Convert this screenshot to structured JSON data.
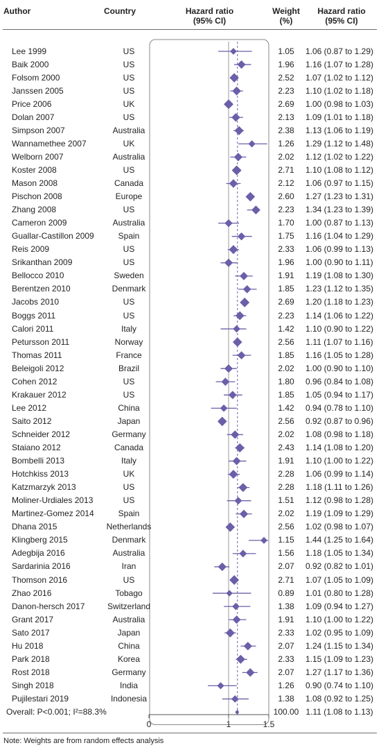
{
  "headers": {
    "author": "Author",
    "country": "Country",
    "hr_line1": "Hazard ratio",
    "hr_line2": "(95% CI)",
    "weight_line1": "Weight",
    "weight_line2": "(%)",
    "hrci_line1": "Hazard ratio",
    "hrci_line2": "(95% CI)"
  },
  "colors": {
    "marker": "#6a5fa8",
    "axis": "#555555",
    "refline": "#999999",
    "box": "#888888"
  },
  "chart_data": {
    "type": "forest",
    "xlim": [
      0,
      1.5
    ],
    "ticks": [
      "0",
      "1",
      "1.5"
    ],
    "reference_line": 1,
    "studies": [
      {
        "author": "Lee 1999",
        "country": "US",
        "weight": "1.05",
        "hr_text": "1.06 (0.87 to 1.29)",
        "hr": 1.06,
        "lo": 0.87,
        "hi": 1.29
      },
      {
        "author": "Baik 2000",
        "country": "US",
        "weight": "1.96",
        "hr_text": "1.16 (1.07 to 1.28)",
        "hr": 1.16,
        "lo": 1.07,
        "hi": 1.28
      },
      {
        "author": "Folsom 2000",
        "country": "US",
        "weight": "2.52",
        "hr_text": "1.07 (1.02 to 1.12)",
        "hr": 1.07,
        "lo": 1.02,
        "hi": 1.12
      },
      {
        "author": "Janssen 2005",
        "country": "US",
        "weight": "2.23",
        "hr_text": "1.10 (1.02 to 1.18)",
        "hr": 1.1,
        "lo": 1.02,
        "hi": 1.18
      },
      {
        "author": "Price 2006",
        "country": "UK",
        "weight": "2.69",
        "hr_text": "1.00 (0.98 to 1.03)",
        "hr": 1.0,
        "lo": 0.98,
        "hi": 1.03
      },
      {
        "author": "Dolan 2007",
        "country": "US",
        "weight": "2.13",
        "hr_text": "1.09 (1.01 to 1.18)",
        "hr": 1.09,
        "lo": 1.01,
        "hi": 1.18
      },
      {
        "author": "Simpson 2007",
        "country": "Australia",
        "weight": "2.38",
        "hr_text": "1.13 (1.06 to 1.19)",
        "hr": 1.13,
        "lo": 1.06,
        "hi": 1.19
      },
      {
        "author": "Wannamethee 2007",
        "country": "UK",
        "weight": "1.26",
        "hr_text": "1.29 (1.12 to 1.48)",
        "hr": 1.29,
        "lo": 1.12,
        "hi": 1.48
      },
      {
        "author": "Welborn 2007",
        "country": "Australia",
        "weight": "2.02",
        "hr_text": "1.12 (1.02 to 1.22)",
        "hr": 1.12,
        "lo": 1.02,
        "hi": 1.22
      },
      {
        "author": "Koster 2008",
        "country": "US",
        "weight": "2.71",
        "hr_text": "1.10 (1.08 to 1.12)",
        "hr": 1.1,
        "lo": 1.08,
        "hi": 1.12
      },
      {
        "author": "Mason 2008",
        "country": "Canada",
        "weight": "2.12",
        "hr_text": "1.06 (0.97 to 1.15)",
        "hr": 1.06,
        "lo": 0.97,
        "hi": 1.15
      },
      {
        "author": "Pischon 2008",
        "country": "Europe",
        "weight": "2.60",
        "hr_text": "1.27 (1.23 to 1.31)",
        "hr": 1.27,
        "lo": 1.23,
        "hi": 1.31
      },
      {
        "author": "Zhang 2008",
        "country": "US",
        "weight": "2.23",
        "hr_text": "1.34 (1.23 to 1.39)",
        "hr": 1.34,
        "lo": 1.23,
        "hi": 1.39
      },
      {
        "author": "Cameron 2009",
        "country": "Australia",
        "weight": "1.70",
        "hr_text": "1.00 (0.87 to 1.13)",
        "hr": 1.0,
        "lo": 0.87,
        "hi": 1.13
      },
      {
        "author": "Guallar-Castillon 2009",
        "country": "Spain",
        "weight": "1.75",
        "hr_text": "1.16 (1.04 to 1.29)",
        "hr": 1.16,
        "lo": 1.04,
        "hi": 1.29
      },
      {
        "author": "Reis 2009",
        "country": "US",
        "weight": "2.33",
        "hr_text": "1.06 (0.99 to 1.13)",
        "hr": 1.06,
        "lo": 0.99,
        "hi": 1.13
      },
      {
        "author": "Srikanthan 2009",
        "country": "US",
        "weight": "1.96",
        "hr_text": "1.00 (0.90 to 1.11)",
        "hr": 1.0,
        "lo": 0.9,
        "hi": 1.11
      },
      {
        "author": "Bellocco 2010",
        "country": "Sweden",
        "weight": "1.91",
        "hr_text": "1.19 (1.08 to 1.30)",
        "hr": 1.19,
        "lo": 1.08,
        "hi": 1.3
      },
      {
        "author": "Berentzen 2010",
        "country": "Denmark",
        "weight": "1.85",
        "hr_text": "1.23 (1.12 to 1.35)",
        "hr": 1.23,
        "lo": 1.12,
        "hi": 1.35
      },
      {
        "author": "Jacobs 2010",
        "country": "US",
        "weight": "2.69",
        "hr_text": "1.20 (1.18 to 1.23)",
        "hr": 1.2,
        "lo": 1.18,
        "hi": 1.23
      },
      {
        "author": "Boggs 2011",
        "country": "US",
        "weight": "2.23",
        "hr_text": "1.14 (1.06 to 1.22)",
        "hr": 1.14,
        "lo": 1.06,
        "hi": 1.22
      },
      {
        "author": "Calori 2011",
        "country": "Italy",
        "weight": "1.42",
        "hr_text": "1.10 (0.90 to 1.22)",
        "hr": 1.1,
        "lo": 0.9,
        "hi": 1.22
      },
      {
        "author": "Petursson 2011",
        "country": "Norway",
        "weight": "2.56",
        "hr_text": "1.11 (1.07 to 1.16)",
        "hr": 1.11,
        "lo": 1.07,
        "hi": 1.16
      },
      {
        "author": "Thomas 2011",
        "country": "France",
        "weight": "1.85",
        "hr_text": "1.16 (1.05 to 1.28)",
        "hr": 1.16,
        "lo": 1.05,
        "hi": 1.28
      },
      {
        "author": "Beleigoli 2012",
        "country": "Brazil",
        "weight": "2.02",
        "hr_text": "1.00 (0.90 to 1.10)",
        "hr": 1.0,
        "lo": 0.9,
        "hi": 1.1
      },
      {
        "author": "Cohen 2012",
        "country": "US",
        "weight": "1.80",
        "hr_text": "0.96 (0.84 to 1.08)",
        "hr": 0.96,
        "lo": 0.84,
        "hi": 1.08
      },
      {
        "author": "Krakauer 2012",
        "country": "US",
        "weight": "1.85",
        "hr_text": "1.05 (0.94 to 1.17)",
        "hr": 1.05,
        "lo": 0.94,
        "hi": 1.17
      },
      {
        "author": "Lee 2012",
        "country": "China",
        "weight": "1.42",
        "hr_text": "0.94 (0.78 to 1.10)",
        "hr": 0.94,
        "lo": 0.78,
        "hi": 1.1
      },
      {
        "author": "Saito 2012",
        "country": "Japan",
        "weight": "2.56",
        "hr_text": "0.92 (0.87 to 0.96)",
        "hr": 0.92,
        "lo": 0.87,
        "hi": 0.96
      },
      {
        "author": "Schneider 2012",
        "country": "Germany",
        "weight": "2.02",
        "hr_text": "1.08 (0.98 to 1.18)",
        "hr": 1.08,
        "lo": 0.98,
        "hi": 1.18
      },
      {
        "author": "Staiano 2012",
        "country": "Canada",
        "weight": "2.43",
        "hr_text": "1.14 (1.08 to 1.20)",
        "hr": 1.14,
        "lo": 1.08,
        "hi": 1.2
      },
      {
        "author": "Bombelli 2013",
        "country": "Italy",
        "weight": "1.91",
        "hr_text": "1.10 (1.00 to 1.22)",
        "hr": 1.1,
        "lo": 1.0,
        "hi": 1.22
      },
      {
        "author": "Hotchkiss 2013",
        "country": "UK",
        "weight": "2.28",
        "hr_text": "1.06 (0.99 to 1.14)",
        "hr": 1.06,
        "lo": 0.99,
        "hi": 1.14
      },
      {
        "author": "Katzmarzyk 2013",
        "country": "US",
        "weight": "2.28",
        "hr_text": "1.18 (1.11 to 1.26)",
        "hr": 1.18,
        "lo": 1.11,
        "hi": 1.26
      },
      {
        "author": "Moliner-Urdiales 2013",
        "country": "US",
        "weight": "1.51",
        "hr_text": "1.12 (0.98 to 1.28)",
        "hr": 1.12,
        "lo": 0.98,
        "hi": 1.28
      },
      {
        "author": "Martinez-Gomez 2014",
        "country": "Spain",
        "weight": "2.02",
        "hr_text": "1.19 (1.09 to 1.29)",
        "hr": 1.19,
        "lo": 1.09,
        "hi": 1.29
      },
      {
        "author": "Dhana 2015",
        "country": "Netherlands",
        "weight": "2.56",
        "hr_text": "1.02 (0.98 to 1.07)",
        "hr": 1.02,
        "lo": 0.98,
        "hi": 1.07
      },
      {
        "author": "Klingberg 2015",
        "country": "Denmark",
        "weight": "1.15",
        "hr_text": "1.44 (1.25 to 1.64)",
        "hr": 1.44,
        "lo": 1.25,
        "hi": 1.64
      },
      {
        "author": "Adegbija 2016",
        "country": "Australia",
        "weight": "1.56",
        "hr_text": "1.18 (1.05 to 1.34)",
        "hr": 1.18,
        "lo": 1.05,
        "hi": 1.34
      },
      {
        "author": "Sardarinia 2016",
        "country": "Iran",
        "weight": "2.07",
        "hr_text": "0.92 (0.82 to 1.01)",
        "hr": 0.92,
        "lo": 0.82,
        "hi": 1.01
      },
      {
        "author": "Thomson 2016",
        "country": "US",
        "weight": "2.71",
        "hr_text": "1.07 (1.05 to 1.09)",
        "hr": 1.07,
        "lo": 1.05,
        "hi": 1.09
      },
      {
        "author": "Zhao 2016",
        "country": "Tobago",
        "weight": "0.89",
        "hr_text": "1.01 (0.80 to 1.28)",
        "hr": 1.01,
        "lo": 0.8,
        "hi": 1.28
      },
      {
        "author": "Danon-hersch 2017",
        "country": "Switzerland",
        "weight": "1.38",
        "hr_text": "1.09 (0.94 to 1.27)",
        "hr": 1.09,
        "lo": 0.94,
        "hi": 1.27
      },
      {
        "author": "Grant 2017",
        "country": "Australia",
        "weight": "1.91",
        "hr_text": "1.10 (1.00 to 1.22)",
        "hr": 1.1,
        "lo": 1.0,
        "hi": 1.22
      },
      {
        "author": "Sato 2017",
        "country": "Japan",
        "weight": "2.33",
        "hr_text": "1.02 (0.95 to 1.09)",
        "hr": 1.02,
        "lo": 0.95,
        "hi": 1.09
      },
      {
        "author": "Hu 2018",
        "country": "China",
        "weight": "2.07",
        "hr_text": "1.24 (1.15 to 1.34)",
        "hr": 1.24,
        "lo": 1.15,
        "hi": 1.34
      },
      {
        "author": "Park 2018",
        "country": "Korea",
        "weight": "2.33",
        "hr_text": "1.15 (1.09 to 1.23)",
        "hr": 1.15,
        "lo": 1.09,
        "hi": 1.23
      },
      {
        "author": "Rost 2018",
        "country": "Germany",
        "weight": "2.07",
        "hr_text": "1.27 (1.17 to 1.36)",
        "hr": 1.27,
        "lo": 1.17,
        "hi": 1.36
      },
      {
        "author": "Singh 2018",
        "country": "India",
        "weight": "1.26",
        "hr_text": "0.90 (0.74 to 1.10)",
        "hr": 0.9,
        "lo": 0.74,
        "hi": 1.1
      },
      {
        "author": "Pujilestari 2019",
        "country": "Indonesia",
        "weight": "1.38",
        "hr_text": "1.08 (0.92 to 1.25)",
        "hr": 1.08,
        "lo": 0.92,
        "hi": 1.25
      }
    ],
    "overall": {
      "label": "Overall: P<0.001; I²=88.3%",
      "weight": "100.00",
      "hr_text": "1.11 (1.08 to 1.13)",
      "hr": 1.11,
      "lo": 1.08,
      "hi": 1.13
    }
  },
  "note": "Note: Weights are from random effects analysis"
}
